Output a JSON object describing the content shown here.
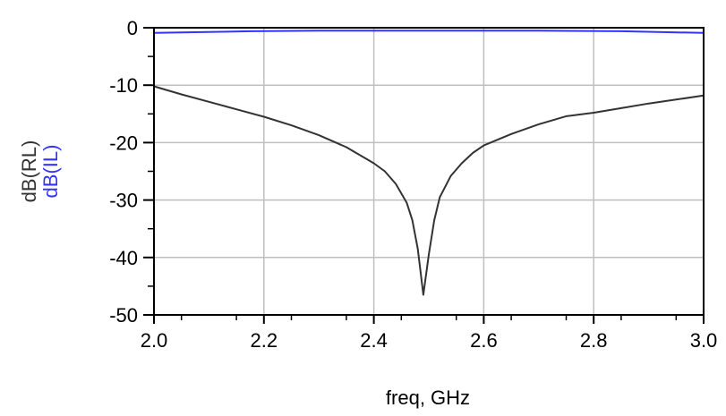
{
  "chart_data": {
    "type": "line",
    "title": "",
    "xlabel": "freq, GHz",
    "ylabels": [
      {
        "text": "dB(RL)",
        "color": "#333333"
      },
      {
        "text": "dB(IL)",
        "color": "#3333ff"
      }
    ],
    "xlim": [
      2.0,
      3.0
    ],
    "ylim": [
      -50,
      0
    ],
    "x_ticks": [
      "2.0",
      "2.2",
      "2.4",
      "2.6",
      "2.8",
      "3.0"
    ],
    "y_ticks": [
      "0",
      "-10",
      "-20",
      "-30",
      "-40",
      "-50"
    ],
    "grid": true,
    "series": [
      {
        "name": "dB(RL)",
        "color": "#333333",
        "x": [
          2.0,
          2.05,
          2.1,
          2.15,
          2.2,
          2.25,
          2.3,
          2.35,
          2.4,
          2.42,
          2.44,
          2.46,
          2.47,
          2.48,
          2.49,
          2.5,
          2.51,
          2.52,
          2.54,
          2.56,
          2.58,
          2.6,
          2.65,
          2.7,
          2.75,
          2.8,
          2.85,
          2.9,
          2.95,
          3.0
        ],
        "y": [
          -10.2,
          -11.6,
          -12.9,
          -14.2,
          -15.5,
          -17.0,
          -18.7,
          -20.8,
          -23.6,
          -25.0,
          -27.2,
          -30.5,
          -33.5,
          -38.5,
          -46.5,
          -39.5,
          -33.5,
          -29.5,
          -25.8,
          -23.6,
          -21.8,
          -20.5,
          -18.5,
          -16.8,
          -15.4,
          -14.8,
          -14.0,
          -13.2,
          -12.5,
          -11.8
        ]
      },
      {
        "name": "dB(IL)",
        "color": "#3333ff",
        "x": [
          2.0,
          2.18,
          2.3,
          2.5,
          2.7,
          2.85,
          3.0
        ],
        "y": [
          -0.9,
          -0.6,
          -0.5,
          -0.5,
          -0.5,
          -0.6,
          -0.9
        ]
      }
    ]
  }
}
